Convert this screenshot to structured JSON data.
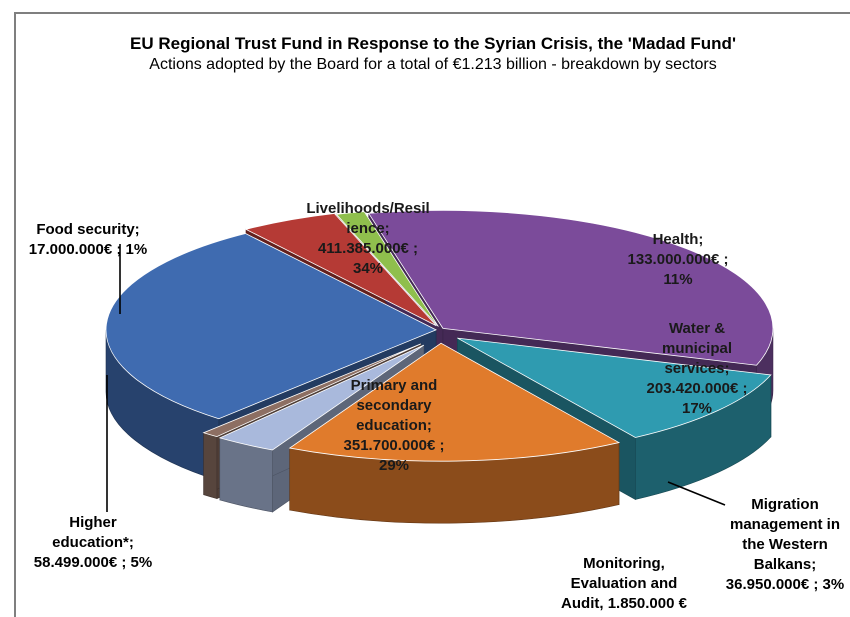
{
  "chart_data": {
    "type": "pie",
    "title": "EU Regional Trust Fund in Response to the Syrian Crisis, the 'Madad Fund'",
    "subtitle": "Actions adopted by the Board for a total of €1.213 billion - breakdown by sectors",
    "slices": [
      {
        "key": "livelihoods",
        "label_lines": [
          "Livelihoods/Resil",
          "ience;",
          "411.385.000€ ;",
          "34%"
        ],
        "value": 411385000,
        "percent": 34,
        "color": "#7b4b9a"
      },
      {
        "key": "health",
        "label_lines": [
          "Health;",
          "133.000.000€ ;",
          "11%"
        ],
        "value": 133000000,
        "percent": 11,
        "color": "#2f9bb0"
      },
      {
        "key": "water",
        "label_lines": [
          "Water &",
          "municipal",
          "services;",
          "203.420.000€ ;",
          "17%"
        ],
        "value": 203420000,
        "percent": 17,
        "color": "#e07b2c"
      },
      {
        "key": "migration",
        "label_lines": [
          "Migration",
          "management in",
          "the Western",
          "Balkans;",
          "36.950.000€ ; 3%"
        ],
        "value": 36950000,
        "percent": 3,
        "color": "#a9b9dc"
      },
      {
        "key": "monitoring",
        "label_lines": [
          "Monitoring,",
          "Evaluation and",
          "Audit, 1.850.000 €"
        ],
        "value": 1850000,
        "percent": 0,
        "color": "#8d6f63"
      },
      {
        "key": "primary",
        "label_lines": [
          "Primary and",
          "secondary",
          "education;",
          "351.700.000€ ;",
          "29%"
        ],
        "value": 351700000,
        "percent": 29,
        "color": "#3f6bb0"
      },
      {
        "key": "higher",
        "label_lines": [
          "Higher",
          "education*;",
          "58.499.000€ ; 5%"
        ],
        "value": 58499000,
        "percent": 5,
        "color": "#b53a35"
      },
      {
        "key": "food",
        "label_lines": [
          "Food security;",
          "17.000.000€ ; 1%"
        ],
        "value": 17000000,
        "percent": 1,
        "color": "#8fbf4d"
      }
    ]
  }
}
